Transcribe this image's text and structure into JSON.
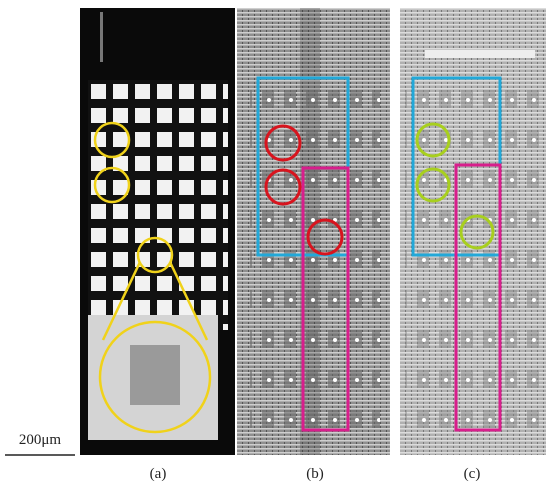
{
  "scale_bar": "200μm",
  "panels": [
    {
      "label": "(a)"
    },
    {
      "label": "(b)"
    },
    {
      "label": "(c)"
    }
  ]
}
